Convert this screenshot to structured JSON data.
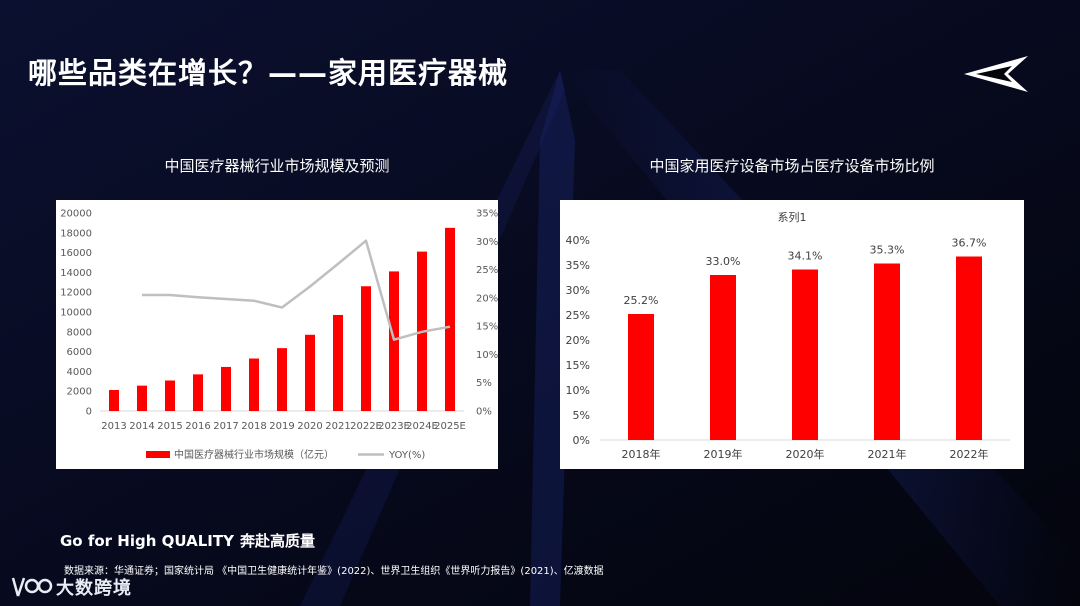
{
  "slide": {
    "title": "哪些品类在增长？——家用医疗器械",
    "slogan_latin": "Go for High QUALITY",
    "slogan_cn": "奔赴高质量",
    "source": "数据来源：华通证券；国家统计局 《中国卫生健康统计年鉴》(2022)、世界卫生组织《世界听力报告》(2021)、亿渡数据",
    "brand_name": "大数跨境",
    "logo_icon": "arrow-logo-icon",
    "brand_icon": "brand-logo-icon"
  },
  "colors": {
    "bar_red": "#ff0000",
    "line_gray": "#bfbfbf",
    "accent_blue": "#1e2c7a"
  },
  "chart_data": [
    {
      "type": "bar",
      "heading": "中国医疗器械行业市场规模及预测",
      "categories": [
        "2013",
        "2014",
        "2015",
        "2016",
        "2017",
        "2018",
        "2019",
        "2020",
        "2021",
        "2022E",
        "2023E",
        "2024E",
        "2025E"
      ],
      "series": [
        {
          "name": "中国医疗器械行业市场规模（亿元）",
          "type": "bar",
          "axis": "left",
          "values": [
            2120,
            2560,
            3080,
            3700,
            4450,
            5300,
            6350,
            7700,
            9700,
            12600,
            14100,
            16100,
            18500
          ]
        },
        {
          "name": "YOY(%)",
          "type": "line",
          "axis": "right",
          "values": [
            null,
            20.5,
            20.5,
            20.1,
            19.8,
            19.5,
            18.3,
            22.0,
            26.0,
            30.1,
            12.6,
            14.0,
            14.9
          ]
        }
      ],
      "ylim_left": [
        0,
        20000
      ],
      "yticks_left": [
        "0",
        "2000",
        "4000",
        "6000",
        "8000",
        "10000",
        "12000",
        "14000",
        "16000",
        "18000",
        "20000"
      ],
      "ylim_right": [
        0,
        35
      ],
      "yticks_right": [
        "0%",
        "5%",
        "10%",
        "15%",
        "20%",
        "25%",
        "30%",
        "35%"
      ],
      "legend": [
        "中国医疗器械行业市场规模（亿元）",
        "YOY(%)"
      ],
      "legend_position": "bottom"
    },
    {
      "type": "bar",
      "heading": "中国家用医疗设备市场占医疗设备市场比例",
      "title": "系列1",
      "categories": [
        "2018年",
        "2019年",
        "2020年",
        "2021年",
        "2022年"
      ],
      "values": [
        25.2,
        33.0,
        34.1,
        35.3,
        36.7
      ],
      "labels": [
        "25.2%",
        "33.0%",
        "34.1%",
        "35.3%",
        "36.7%"
      ],
      "ylim": [
        0,
        40
      ],
      "yticks": [
        "0%",
        "5%",
        "10%",
        "15%",
        "20%",
        "25%",
        "30%",
        "35%",
        "40%"
      ]
    }
  ]
}
